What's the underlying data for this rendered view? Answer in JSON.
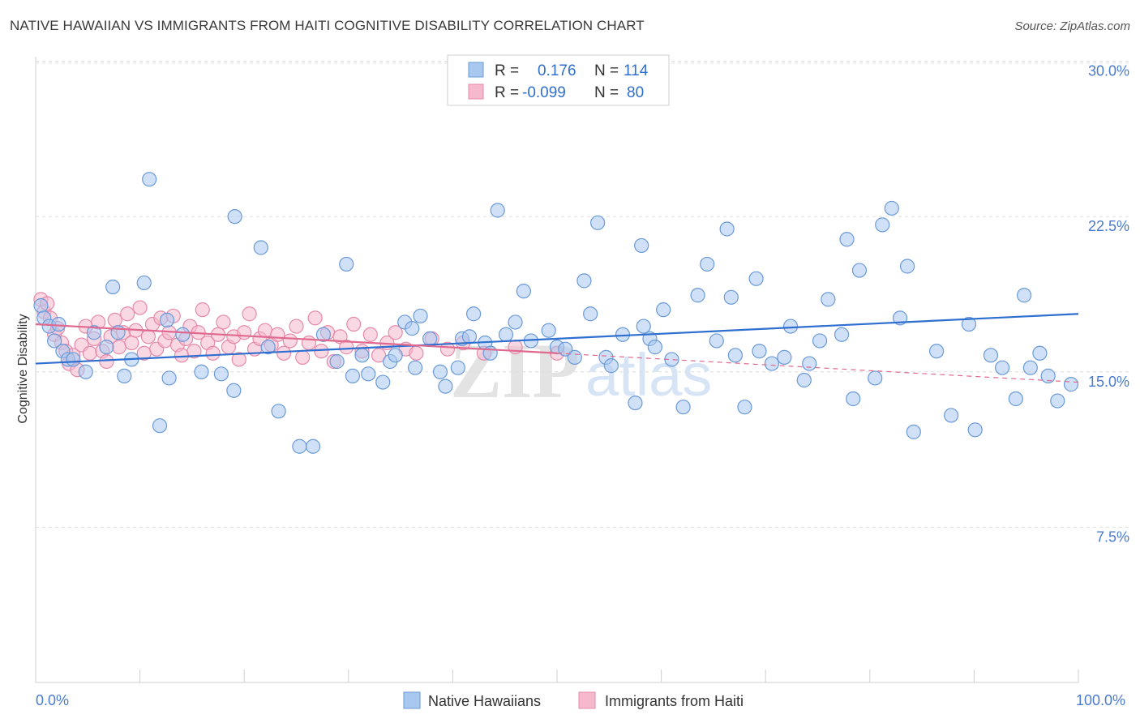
{
  "header": {
    "title": "NATIVE HAWAIIAN VS IMMIGRANTS FROM HAITI COGNITIVE DISABILITY CORRELATION CHART",
    "source": "Source: ZipAtlas.com"
  },
  "watermark": {
    "zip": "ZIP",
    "atlas": "atlas"
  },
  "legend": {
    "rows": [
      {
        "r_label": "R =",
        "r_value": "0.176",
        "n_label": "N =",
        "n_value": "114"
      },
      {
        "r_label": "R =",
        "r_value": "-0.099",
        "n_label": "N =",
        "n_value": "80"
      }
    ]
  },
  "bottom_legend": [
    "Native Hawaiians",
    "Immigrants from Haiti"
  ],
  "colors": {
    "blue_fill": "#a9c8f0",
    "blue_stroke": "#6a9ad8",
    "blue_line": "#2f6fcf",
    "pink_fill": "#f6b8cc",
    "pink_stroke": "#e58aa8",
    "pink_line": "#e0698f",
    "tick_text": "#4a7bd0",
    "grid": "#dddddd"
  },
  "chart_data": {
    "type": "scatter",
    "title": "NATIVE HAWAIIAN VS IMMIGRANTS FROM HAITI COGNITIVE DISABILITY CORRELATION CHART",
    "xlabel": "",
    "ylabel": "Cognitive Disability",
    "xlim": [
      0,
      100
    ],
    "ylim": [
      0,
      31
    ],
    "x_tick_labels": [
      "0.0%",
      "100.0%"
    ],
    "y_ticks": [
      7.5,
      15.0,
      22.5,
      30.0
    ],
    "y_tick_labels": [
      "7.5%",
      "15.0%",
      "22.5%",
      "30.0%"
    ],
    "grid": true,
    "series": [
      {
        "name": "Native Hawaiians",
        "R": 0.176,
        "N": 114,
        "trend": {
          "x": [
            0,
            100
          ],
          "y": [
            15.4,
            17.8
          ],
          "dashed_from": null
        },
        "points": [
          [
            0.5,
            18.2
          ],
          [
            0.8,
            17.6
          ],
          [
            1.3,
            17.2
          ],
          [
            1.8,
            16.5
          ],
          [
            2.2,
            17.3
          ],
          [
            2.6,
            16.0
          ],
          [
            3.1,
            15.6
          ],
          [
            3.6,
            15.6
          ],
          [
            4.8,
            15.0
          ],
          [
            5.6,
            16.9
          ],
          [
            6.8,
            16.2
          ],
          [
            7.9,
            16.9
          ],
          [
            8.5,
            14.8
          ],
          [
            10.4,
            19.3
          ],
          [
            11.9,
            12.4
          ],
          [
            7.4,
            19.1
          ],
          [
            9.2,
            15.6
          ],
          [
            12.6,
            17.5
          ],
          [
            14.1,
            16.8
          ],
          [
            12.8,
            14.7
          ],
          [
            15.9,
            15.0
          ],
          [
            17.8,
            14.9
          ],
          [
            19.0,
            14.1
          ],
          [
            22.3,
            16.2
          ],
          [
            23.3,
            13.1
          ],
          [
            25.3,
            11.4
          ],
          [
            26.6,
            11.4
          ],
          [
            27.6,
            16.8
          ],
          [
            28.9,
            15.5
          ],
          [
            30.4,
            14.8
          ],
          [
            31.3,
            15.8
          ],
          [
            31.9,
            14.9
          ],
          [
            33.3,
            14.5
          ],
          [
            34.0,
            15.5
          ],
          [
            34.5,
            15.8
          ],
          [
            35.4,
            17.4
          ],
          [
            36.9,
            17.7
          ],
          [
            36.4,
            15.2
          ],
          [
            37.8,
            16.6
          ],
          [
            38.8,
            15.0
          ],
          [
            39.3,
            14.3
          ],
          [
            40.5,
            15.2
          ],
          [
            40.9,
            16.6
          ],
          [
            42.0,
            17.8
          ],
          [
            41.6,
            16.7
          ],
          [
            43.1,
            16.4
          ],
          [
            43.6,
            15.9
          ],
          [
            45.1,
            16.8
          ],
          [
            46.0,
            17.4
          ],
          [
            46.8,
            18.9
          ],
          [
            47.5,
            16.5
          ],
          [
            49.2,
            17.0
          ],
          [
            50.0,
            16.2
          ],
          [
            50.8,
            16.1
          ],
          [
            51.7,
            15.7
          ],
          [
            52.6,
            19.4
          ],
          [
            53.2,
            17.8
          ],
          [
            54.7,
            15.7
          ],
          [
            55.2,
            15.3
          ],
          [
            56.3,
            16.8
          ],
          [
            57.5,
            13.5
          ],
          [
            58.3,
            17.2
          ],
          [
            58.9,
            16.6
          ],
          [
            59.4,
            16.2
          ],
          [
            60.2,
            18.0
          ],
          [
            61.0,
            15.6
          ],
          [
            62.1,
            13.3
          ],
          [
            63.5,
            18.7
          ],
          [
            64.4,
            20.2
          ],
          [
            65.3,
            16.5
          ],
          [
            66.7,
            18.6
          ],
          [
            67.1,
            15.8
          ],
          [
            68.0,
            13.3
          ],
          [
            69.4,
            16.0
          ],
          [
            70.6,
            15.4
          ],
          [
            71.8,
            15.7
          ],
          [
            72.4,
            17.2
          ],
          [
            73.7,
            14.6
          ],
          [
            75.2,
            16.5
          ],
          [
            76.0,
            18.5
          ],
          [
            77.3,
            16.8
          ],
          [
            78.4,
            13.7
          ],
          [
            79.0,
            19.9
          ],
          [
            80.5,
            14.7
          ],
          [
            81.2,
            22.1
          ],
          [
            82.9,
            17.6
          ],
          [
            83.6,
            20.1
          ],
          [
            84.2,
            12.1
          ],
          [
            86.4,
            16.0
          ],
          [
            87.8,
            12.9
          ],
          [
            89.5,
            17.3
          ],
          [
            90.1,
            12.2
          ],
          [
            91.6,
            15.8
          ],
          [
            92.7,
            15.2
          ],
          [
            94.8,
            18.7
          ],
          [
            95.4,
            15.2
          ],
          [
            96.3,
            15.9
          ],
          [
            97.1,
            14.8
          ],
          [
            98.0,
            13.6
          ],
          [
            99.3,
            14.4
          ],
          [
            10.9,
            24.3
          ],
          [
            19.1,
            22.5
          ],
          [
            21.6,
            21.0
          ],
          [
            29.8,
            20.2
          ],
          [
            36.1,
            17.1
          ],
          [
            44.3,
            22.8
          ],
          [
            53.9,
            22.2
          ],
          [
            58.1,
            21.1
          ],
          [
            66.3,
            21.9
          ],
          [
            69.1,
            19.5
          ],
          [
            74.2,
            15.4
          ],
          [
            77.8,
            21.4
          ],
          [
            82.1,
            22.9
          ],
          [
            94.0,
            13.7
          ]
        ]
      },
      {
        "name": "Immigrants from Haiti",
        "R": -0.099,
        "N": 80,
        "trend": {
          "x": [
            0,
            100
          ],
          "y": [
            17.3,
            14.5
          ],
          "dashed_from": 50
        },
        "points": [
          [
            0.5,
            18.5
          ],
          [
            0.8,
            17.9
          ],
          [
            1.1,
            18.3
          ],
          [
            1.4,
            17.6
          ],
          [
            1.8,
            16.8
          ],
          [
            2.1,
            17.1
          ],
          [
            2.5,
            16.4
          ],
          [
            2.9,
            16.0
          ],
          [
            3.2,
            15.4
          ],
          [
            3.6,
            15.8
          ],
          [
            4.0,
            15.1
          ],
          [
            4.4,
            16.3
          ],
          [
            4.8,
            17.2
          ],
          [
            5.2,
            15.9
          ],
          [
            5.6,
            16.6
          ],
          [
            6.0,
            17.4
          ],
          [
            6.4,
            16.0
          ],
          [
            6.8,
            15.5
          ],
          [
            7.2,
            16.7
          ],
          [
            7.6,
            17.5
          ],
          [
            8.0,
            16.2
          ],
          [
            8.4,
            16.9
          ],
          [
            8.8,
            17.8
          ],
          [
            9.2,
            16.4
          ],
          [
            9.6,
            17.0
          ],
          [
            10.0,
            18.1
          ],
          [
            10.4,
            15.9
          ],
          [
            10.8,
            16.7
          ],
          [
            11.2,
            17.3
          ],
          [
            11.6,
            16.1
          ],
          [
            12.0,
            17.6
          ],
          [
            12.4,
            16.5
          ],
          [
            12.8,
            16.9
          ],
          [
            13.2,
            17.7
          ],
          [
            13.6,
            16.3
          ],
          [
            14.0,
            15.8
          ],
          [
            14.4,
            16.6
          ],
          [
            14.8,
            17.2
          ],
          [
            15.2,
            16.0
          ],
          [
            15.6,
            16.9
          ],
          [
            16.0,
            18.0
          ],
          [
            16.5,
            16.4
          ],
          [
            17.0,
            15.9
          ],
          [
            17.5,
            16.8
          ],
          [
            18.0,
            17.4
          ],
          [
            18.5,
            16.2
          ],
          [
            19.0,
            16.7
          ],
          [
            19.5,
            15.6
          ],
          [
            20.0,
            16.9
          ],
          [
            20.5,
            17.8
          ],
          [
            21.0,
            16.1
          ],
          [
            21.5,
            16.6
          ],
          [
            22.0,
            17.0
          ],
          [
            22.6,
            16.3
          ],
          [
            23.2,
            16.8
          ],
          [
            23.8,
            15.9
          ],
          [
            24.4,
            16.5
          ],
          [
            25.0,
            17.2
          ],
          [
            25.6,
            15.7
          ],
          [
            26.2,
            16.4
          ],
          [
            26.8,
            17.6
          ],
          [
            27.4,
            16.0
          ],
          [
            28.0,
            16.9
          ],
          [
            28.6,
            15.5
          ],
          [
            29.2,
            16.7
          ],
          [
            29.8,
            16.2
          ],
          [
            30.5,
            17.3
          ],
          [
            31.3,
            16.0
          ],
          [
            32.1,
            16.8
          ],
          [
            32.9,
            15.8
          ],
          [
            33.7,
            16.4
          ],
          [
            34.5,
            16.9
          ],
          [
            35.5,
            16.1
          ],
          [
            36.5,
            15.9
          ],
          [
            38.0,
            16.6
          ],
          [
            39.5,
            16.1
          ],
          [
            41.0,
            16.4
          ],
          [
            43.0,
            15.9
          ],
          [
            46.0,
            16.2
          ],
          [
            50.0,
            15.9
          ]
        ]
      }
    ]
  }
}
